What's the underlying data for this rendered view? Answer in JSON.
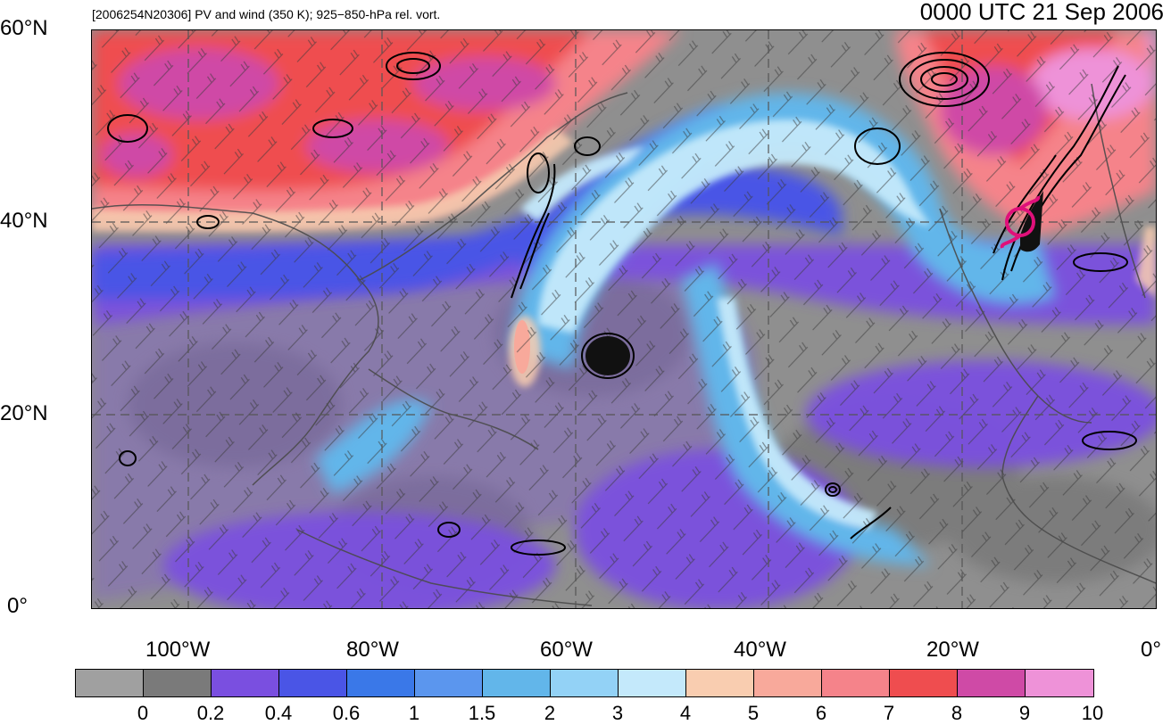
{
  "header": {
    "left_title": "[2006254N20306] PV and wind (350 K); 925−850-hPa rel. vort.",
    "right_title": "0000 UTC 21 Sep 2006"
  },
  "map": {
    "lat_labels": [
      "60°N",
      "40°N",
      "20°N",
      "0°"
    ],
    "lon_labels": [
      "100°W",
      "80°W",
      "60°W",
      "40°W",
      "20°W",
      "0°"
    ],
    "storm_marker_icon": "tropical-cyclone-symbol-icon",
    "storm_marker_color": "#e0107a",
    "contour_color": "#000000",
    "coastline_color": "#4a4a4a"
  },
  "colorbar": {
    "labels": [
      "0",
      "0.2",
      "0.4",
      "0.6",
      "1",
      "1.5",
      "2",
      "3",
      "4",
      "5",
      "6",
      "7",
      "8",
      "9",
      "10"
    ],
    "colors": [
      "#a0a0a0",
      "#7a7a7a",
      "#7a4fe0",
      "#4a55e6",
      "#3a78e8",
      "#5b96ee",
      "#62b6ea",
      "#93d2f6",
      "#c4e9fb",
      "#f9cdb0",
      "#f8a99b",
      "#f5838a",
      "#ef4d4f",
      "#cf4aa6",
      "#ee92d8"
    ]
  }
}
